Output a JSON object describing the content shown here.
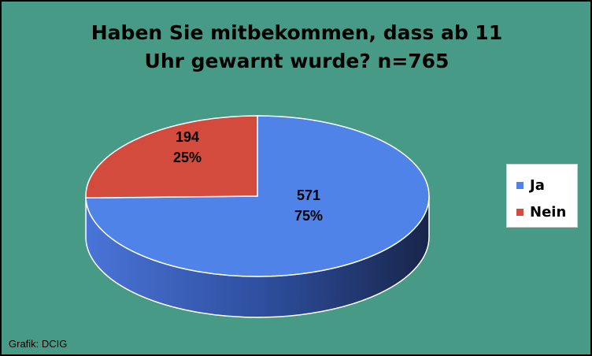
{
  "chart_data": {
    "type": "pie",
    "title_lines": [
      "Haben Sie mitbekommen, dass ab 11",
      "Uhr gewarnt wurde? n=765"
    ],
    "categories": [
      "Ja",
      "Nein"
    ],
    "values": [
      571,
      194
    ],
    "percent_labels": [
      "75%",
      "25%"
    ],
    "colors": {
      "Ja": "#4f83e8",
      "Nein": "#d24b3c"
    },
    "legend_placement": "right",
    "style": "3d"
  },
  "credit": "Grafik: DCIG"
}
